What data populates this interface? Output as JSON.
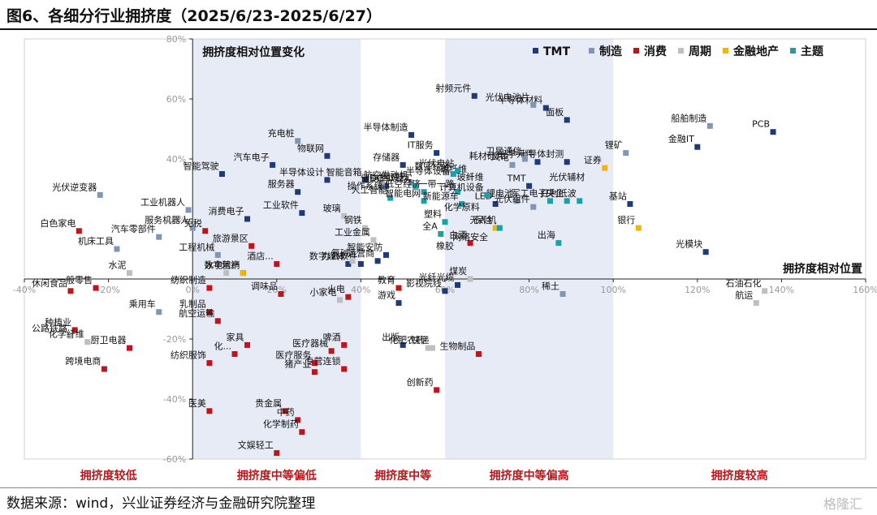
{
  "figure_title": "图6、各细分行业拥挤度（2025/6/23-2025/6/27）",
  "source_note": "数据来源：wind，兴业证券经济与金融研究院整理",
  "watermark": "格隆汇",
  "chart_data": {
    "type": "scatter",
    "title": "",
    "xlabel": "拥挤度相对位置",
    "ylabel": "拥挤度相对位置变化",
    "xlim": [
      -40,
      160
    ],
    "ylim": [
      -60,
      80
    ],
    "x_ticks": [
      "-40%",
      "-20%",
      "0%",
      "20%",
      "40%",
      "60%",
      "80%",
      "100%",
      "120%",
      "140%",
      "160%"
    ],
    "y_ticks": [
      "80%",
      "60%",
      "40%",
      "20%",
      "0%",
      "-20%",
      "-40%",
      "-60%"
    ],
    "legend_position": "top-right",
    "zones": [
      {
        "label": "拥挤度较低",
        "x_range": [
          -40,
          0
        ],
        "shaded": false
      },
      {
        "label": "拥挤度中等偏低",
        "x_range": [
          0,
          40
        ],
        "shaded": true
      },
      {
        "label": "拥挤度中等",
        "x_range": [
          40,
          60
        ],
        "shaded": false
      },
      {
        "label": "拥挤度中等偏高",
        "x_range": [
          60,
          100
        ],
        "shaded": true
      },
      {
        "label": "拥挤度较高",
        "x_range": [
          100,
          160
        ],
        "shaded": false
      }
    ],
    "series": [
      {
        "name": "TMT",
        "color": "#1f3a7a",
        "points": [
          {
            "label": "射频元件",
            "x": 67,
            "y": 61
          },
          {
            "label": "半导体材料",
            "x": 84,
            "y": 57
          },
          {
            "label": "面板",
            "x": 89,
            "y": 53
          },
          {
            "label": "半导体制造",
            "x": 52,
            "y": 48
          },
          {
            "label": "IT服务",
            "x": 58,
            "y": 42
          },
          {
            "label": "存储器",
            "x": 50,
            "y": 38
          },
          {
            "label": "物联网",
            "x": 32,
            "y": 41
          },
          {
            "label": "智能驾驶",
            "x": 7,
            "y": 35
          },
          {
            "label": "汽车电子",
            "x": 19,
            "y": 38
          },
          {
            "label": "半导体设计",
            "x": 32,
            "y": 33
          },
          {
            "label": "智能音箱",
            "x": 41,
            "y": 33
          },
          {
            "label": "服务器",
            "x": 25,
            "y": 29
          },
          {
            "label": "工业软件",
            "x": 26,
            "y": 22
          },
          {
            "label": "消费电子",
            "x": 13,
            "y": 20
          },
          {
            "label": "IDC",
            "x": 46,
            "y": 31
          },
          {
            "label": "光学元件",
            "x": 82,
            "y": 39
          },
          {
            "label": "半导体封测",
            "x": 89,
            "y": 39
          },
          {
            "label": "TMT",
            "x": 80,
            "y": 31
          },
          {
            "label": "LED",
            "x": 72,
            "y": 25
          },
          {
            "label": "数字营销",
            "x": 12,
            "y": 2
          },
          {
            "label": "办公软件",
            "x": 40,
            "y": 5
          },
          {
            "label": "运营商",
            "x": 44,
            "y": 6
          },
          {
            "label": "数字媒体",
            "x": 37,
            "y": 5
          },
          {
            "label": "智能安防",
            "x": 46,
            "y": 8
          },
          {
            "label": "游戏",
            "x": 49,
            "y": -8
          },
          {
            "label": "影视院线",
            "x": 60,
            "y": -4
          },
          {
            "label": "光纤光缆",
            "x": 63,
            "y": -2
          },
          {
            "label": "出版",
            "x": 50,
            "y": -22
          },
          {
            "label": "PCB",
            "x": 138,
            "y": 49
          },
          {
            "label": "金融IT",
            "x": 120,
            "y": 44
          },
          {
            "label": "基站",
            "x": 104,
            "y": 25
          },
          {
            "label": "光模块",
            "x": 122,
            "y": 9
          }
        ]
      },
      {
        "name": "制造",
        "color": "#8096b4",
        "points": [
          {
            "label": "光伏电池片",
            "x": 81,
            "y": 58
          },
          {
            "label": "充电桩",
            "x": 25,
            "y": 46
          },
          {
            "label": "光伏逆变器",
            "x": -22,
            "y": 28
          },
          {
            "label": "工业机器人",
            "x": -1,
            "y": 23
          },
          {
            "label": "汽车零部件",
            "x": -8,
            "y": 14
          },
          {
            "label": "机床工具",
            "x": -18,
            "y": 10
          },
          {
            "label": "服务机器人",
            "x": 0,
            "y": 17
          },
          {
            "label": "工程机械",
            "x": 6,
            "y": 8
          },
          {
            "label": "乘用车",
            "x": -8,
            "y": -11
          },
          {
            "label": "储能",
            "x": 45,
            "y": 31
          },
          {
            "label": "航空发动机",
            "x": 52,
            "y": 32
          },
          {
            "label": "卫星通信",
            "x": 79,
            "y": 40
          },
          {
            "label": "风电",
            "x": 76,
            "y": 38
          },
          {
            "label": "锂电池",
            "x": 77,
            "y": 26
          },
          {
            "label": "光伏组件",
            "x": 81,
            "y": 24
          },
          {
            "label": "船舶制造",
            "x": 123,
            "y": 51
          },
          {
            "label": "锂矿",
            "x": 103,
            "y": 42
          },
          {
            "label": "稀土",
            "x": 88,
            "y": -5
          }
        ]
      },
      {
        "name": "消费",
        "color": "#c0141a",
        "points": [
          {
            "label": "白色家电",
            "x": -27,
            "y": 16
          },
          {
            "label": "免税",
            "x": 3,
            "y": 16
          },
          {
            "label": "旅游景区",
            "x": 14,
            "y": 11
          },
          {
            "label": "酒店...",
            "x": 20,
            "y": 5
          },
          {
            "label": "休闲食品",
            "x": -29,
            "y": -4
          },
          {
            "label": "一般零售",
            "x": -23,
            "y": -3
          },
          {
            "label": "种植业",
            "x": -28,
            "y": -17
          },
          {
            "label": "厨卫电器",
            "x": -15,
            "y": -23
          },
          {
            "label": "跨境电商",
            "x": -21,
            "y": -30
          },
          {
            "label": "纺织制造",
            "x": 4,
            "y": -3
          },
          {
            "label": "乳制品",
            "x": 4,
            "y": -11
          },
          {
            "label": "调味品",
            "x": 21,
            "y": -5
          },
          {
            "label": "火电",
            "x": 37,
            "y": -6
          },
          {
            "label": "航空运输",
            "x": 6,
            "y": -14
          },
          {
            "label": "家具",
            "x": 13,
            "y": -22
          },
          {
            "label": "化...",
            "x": 10,
            "y": -25
          },
          {
            "label": "纺织服饰",
            "x": 4,
            "y": -28
          },
          {
            "label": "啤酒",
            "x": 36,
            "y": -22
          },
          {
            "label": "医疗服务",
            "x": 29,
            "y": -28
          },
          {
            "label": "医疗器械",
            "x": 33,
            "y": -24
          },
          {
            "label": "猪产业",
            "x": 29,
            "y": -31
          },
          {
            "label": "专营连锁",
            "x": 36,
            "y": -30
          },
          {
            "label": "贵金属",
            "x": 22,
            "y": -44
          },
          {
            "label": "医美",
            "x": 4,
            "y": -44
          },
          {
            "label": "中药",
            "x": 25,
            "y": -47
          },
          {
            "label": "化学制药",
            "x": 26,
            "y": -51
          },
          {
            "label": "文娱轻工",
            "x": 20,
            "y": -58
          },
          {
            "label": "教育",
            "x": 49,
            "y": -3
          },
          {
            "label": "生物制品",
            "x": 68,
            "y": -25
          },
          {
            "label": "创新药",
            "x": 58,
            "y": -37
          },
          {
            "label": "白酒",
            "x": 66,
            "y": 12
          }
        ]
      },
      {
        "name": "周期",
        "color": "#bfbfbf",
        "points": [
          {
            "label": "水泥",
            "x": -15,
            "y": 2
          },
          {
            "label": "公路铁路",
            "x": -29,
            "y": -19
          },
          {
            "label": "化学纤维",
            "x": -25,
            "y": -21
          },
          {
            "label": "水电",
            "x": 8,
            "y": 2
          },
          {
            "label": "玻璃",
            "x": 36,
            "y": 21
          },
          {
            "label": "钢铁",
            "x": 41,
            "y": 17
          },
          {
            "label": "工业金属",
            "x": 43,
            "y": 13
          },
          {
            "label": "氯碱",
            "x": 38,
            "y": 6
          },
          {
            "label": "小家电",
            "x": 35,
            "y": -7
          },
          {
            "label": "化肥农药",
            "x": 56,
            "y": -23
          },
          {
            "label": "快递",
            "x": 57,
            "y": -23
          },
          {
            "label": "碳纤维",
            "x": 66,
            "y": 34
          },
          {
            "label": "煤炭",
            "x": 66,
            "y": 0
          },
          {
            "label": "石油石化",
            "x": 136,
            "y": -4
          },
          {
            "label": "航运",
            "x": 134,
            "y": -8
          }
        ]
      },
      {
        "name": "金融地产",
        "color": "#f5b400",
        "points": [
          {
            "label": "地产",
            "x": 12,
            "y": 2
          },
          {
            "label": "保险",
            "x": 72,
            "y": 17
          },
          {
            "label": "证券",
            "x": 98,
            "y": 37
          },
          {
            "label": "银行",
            "x": 106,
            "y": 17
          }
        ]
      },
      {
        "name": "主题",
        "color": "#1aa0a8",
        "points": [
          {
            "label": "光伏电站",
            "x": 63,
            "y": 36
          },
          {
            "label": "数字经济",
            "x": 62,
            "y": 35
          },
          {
            "label": "虚拟现实",
            "x": 53,
            "y": 31
          },
          {
            "label": "人工智能",
            "x": 47,
            "y": 27
          },
          {
            "label": "低空经济",
            "x": 55,
            "y": 29
          },
          {
            "label": "一带一路",
            "x": 63,
            "y": 29
          },
          {
            "label": "计算机设备",
            "x": 70,
            "y": 28
          },
          {
            "label": "智能电网",
            "x": 55,
            "y": 26
          },
          {
            "label": "新能源车",
            "x": 64,
            "y": 25
          },
          {
            "label": "无人机",
            "x": 73,
            "y": 17
          },
          {
            "label": "塑料",
            "x": 60,
            "y": 19
          },
          {
            "label": "全A",
            "x": 59,
            "y": 15
          },
          {
            "label": "军工电子",
            "x": 85,
            "y": 26
          },
          {
            "label": "央企",
            "x": 89,
            "y": 26
          },
          {
            "label": "红利低波",
            "x": 92,
            "y": 26
          },
          {
            "label": "出海",
            "x": 87,
            "y": 12
          }
        ]
      }
    ],
    "extra_labels": [
      "操作系统",
      "国资云",
      "半导体设备",
      "橡胶",
      "网络安全",
      "化学原料",
      "光伏辅材",
      "玻纤维",
      "耗材硅片"
    ]
  }
}
